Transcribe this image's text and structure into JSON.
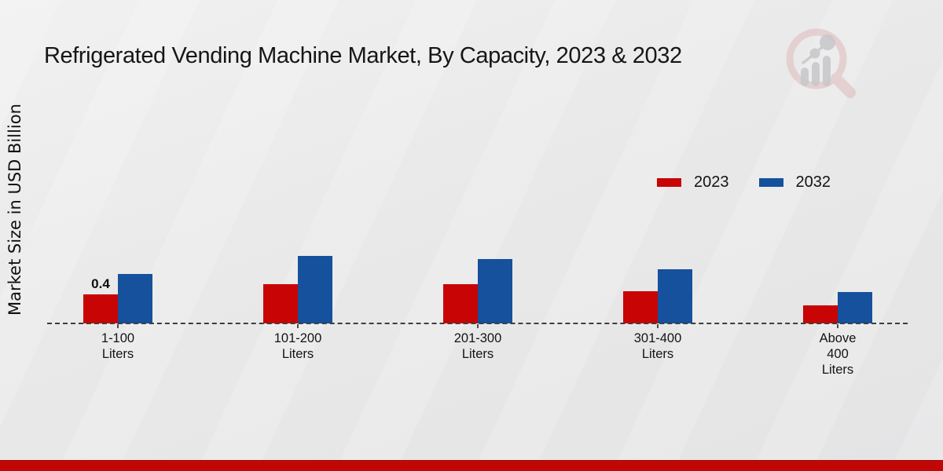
{
  "header": {
    "title": "Refrigerated Vending Machine Market, By Capacity, 2023 & 2032"
  },
  "y_axis": {
    "label": "Market Size in USD Billion"
  },
  "legend": {
    "items": [
      {
        "label": "2023",
        "color": "#c90404"
      },
      {
        "label": "2032",
        "color": "#15519c"
      }
    ]
  },
  "chart_data": {
    "type": "bar",
    "title": "Refrigerated Vending Machine Market, By Capacity, 2023 & 2032",
    "xlabel": "",
    "ylabel": "Market Size in USD Billion",
    "categories": [
      "1-100\nLiters",
      "101-200\nLiters",
      "201-300\nLiters",
      "301-400\nLiters",
      "Above\n400\nLiters"
    ],
    "series": [
      {
        "name": "2023",
        "color": "#c90404",
        "values": [
          0.4,
          0.54,
          0.54,
          0.44,
          0.25
        ]
      },
      {
        "name": "2032",
        "color": "#15519c",
        "values": [
          0.68,
          0.93,
          0.89,
          0.75,
          0.43
        ]
      }
    ],
    "annotations": [
      {
        "series": "2023",
        "category_index": 0,
        "text": "0.4"
      }
    ],
    "ylim": [
      0,
      1.0
    ],
    "grid": false,
    "axis_style": "dashed-baseline-only",
    "legend_position": "upper-right"
  },
  "footer": {
    "bar_color": "#c10606"
  },
  "logo": {
    "name": "magnifier-bar-chart-logo"
  }
}
